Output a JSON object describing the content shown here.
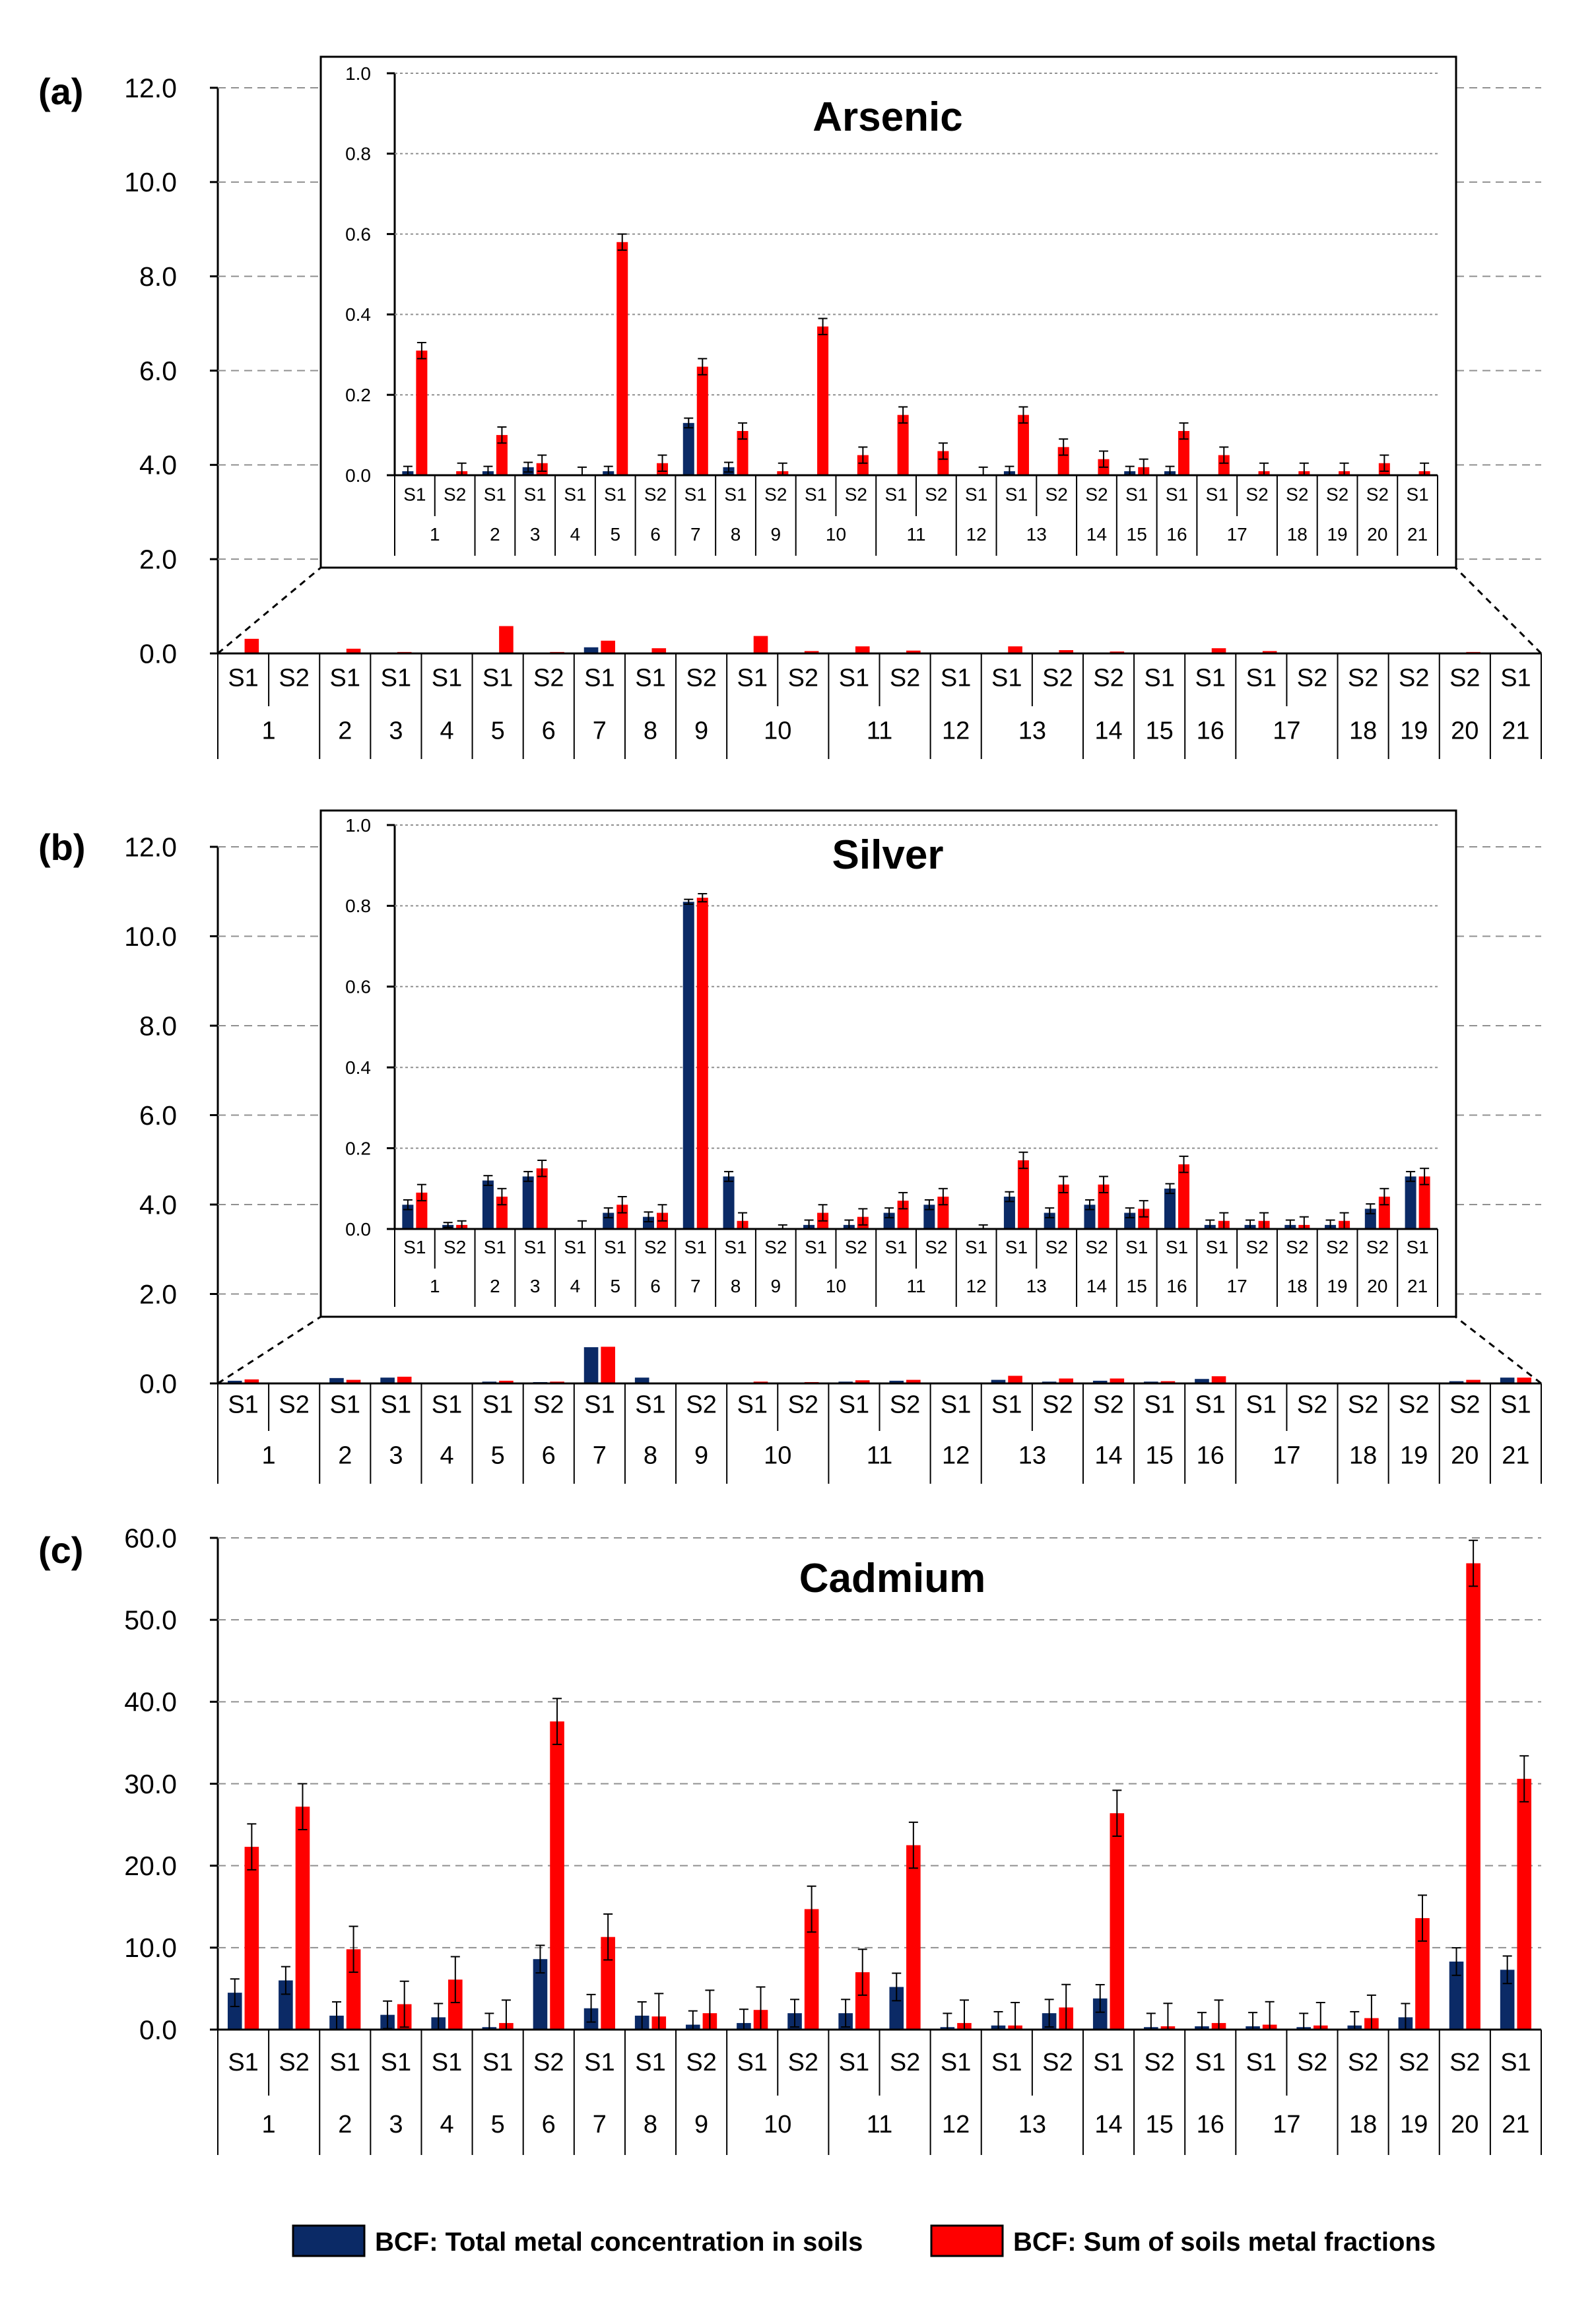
{
  "colors": {
    "total": "#0B2A66",
    "fractions": "#FF0000",
    "grid": "#909090",
    "axis": "#000000"
  },
  "legend": {
    "total": "BCF: Total metal concentration in soils",
    "fractions": "BCF: Sum of soils metal fractions"
  },
  "chart_data": [
    {
      "type": "bar",
      "panel": "(a)",
      "title": "Arsenic",
      "ylim": [
        0,
        12
      ],
      "yticks": [
        "0.0",
        "2.0",
        "4.0",
        "6.0",
        "8.0",
        "10.0",
        "12.0"
      ],
      "inset": {
        "ylim": [
          0,
          1
        ],
        "yticks": [
          "0.0",
          "0.2",
          "0.4",
          "0.6",
          "0.8",
          "1.0"
        ],
        "categories": [
          "S1",
          "S2",
          "S1",
          "S1",
          "S1",
          "S1",
          "S2",
          "S1",
          "S1",
          "S2",
          "S1",
          "S2",
          "S1",
          "S2",
          "S1",
          "S1",
          "S2",
          "S2",
          "S1",
          "S1",
          "S1",
          "S2",
          "S2",
          "S2",
          "S2",
          "S1"
        ],
        "groups": [
          "1",
          "2",
          "3",
          "4",
          "5",
          "6",
          "7",
          "8",
          "9",
          "10",
          "11",
          "12",
          "13",
          "14",
          "15",
          "16",
          "17",
          "18",
          "19",
          "20",
          "21"
        ],
        "group_span": [
          2,
          1,
          1,
          1,
          1,
          1,
          1,
          1,
          1,
          2,
          2,
          1,
          2,
          1,
          1,
          1,
          2,
          1,
          1,
          1,
          1
        ],
        "series": [
          {
            "name": "BCF: Total metal concentration in soils",
            "values": [
              0.01,
              0,
              0.01,
              0.02,
              0,
              0.01,
              0,
              0.13,
              0.02,
              0,
              0,
              0,
              0,
              0,
              0,
              0.01,
              0,
              0,
              0.01,
              0.01,
              0,
              0,
              0,
              0,
              0,
              0
            ]
          },
          {
            "name": "BCF: Sum of soils metal fractions",
            "values": [
              0.31,
              0.01,
              0.1,
              0.03,
              0,
              0.58,
              0.03,
              0.27,
              0.11,
              0.01,
              0.37,
              0.05,
              0.15,
              0.06,
              0,
              0.15,
              0.07,
              0.04,
              0.02,
              0.11,
              0.05,
              0.01,
              0.01,
              0.01,
              0.03,
              0.01
            ]
          },
          {
            "name": "error",
            "values": [
              0.02,
              0.02,
              0.02,
              0.02,
              0.02,
              0.02,
              0.02,
              0.02,
              0.02,
              0.02,
              0.02,
              0.02,
              0.02,
              0.02,
              0.02,
              0.02,
              0.02,
              0.02,
              0.02,
              0.02,
              0.02,
              0.02,
              0.02,
              0.02,
              0.02,
              0.02
            ]
          }
        ]
      },
      "categories": [
        "S1",
        "S2",
        "S1",
        "S1",
        "S1",
        "S1",
        "S2",
        "S1",
        "S1",
        "S2",
        "S1",
        "S2",
        "S1",
        "S2",
        "S1",
        "S1",
        "S2",
        "S2",
        "S1",
        "S1",
        "S1",
        "S2",
        "S2",
        "S2",
        "S2",
        "S1"
      ],
      "groups": [
        "1",
        "2",
        "3",
        "4",
        "5",
        "6",
        "7",
        "8",
        "9",
        "10",
        "11",
        "12",
        "13",
        "14",
        "15",
        "16",
        "17",
        "18",
        "19",
        "20",
        "21"
      ],
      "group_span": [
        2,
        1,
        1,
        1,
        1,
        1,
        1,
        1,
        1,
        2,
        2,
        1,
        2,
        1,
        1,
        1,
        2,
        1,
        1,
        1,
        1
      ],
      "series": [
        {
          "name": "BCF: Total metal concentration in soils",
          "values": [
            0.01,
            0,
            0.01,
            0.02,
            0,
            0.01,
            0,
            0.13,
            0.02,
            0,
            0,
            0,
            0,
            0,
            0,
            0.01,
            0,
            0,
            0.01,
            0.01,
            0,
            0,
            0,
            0,
            0,
            0
          ]
        },
        {
          "name": "BCF: Sum of soils metal fractions",
          "values": [
            0.31,
            0.01,
            0.1,
            0.03,
            0,
            0.58,
            0.03,
            0.27,
            0.11,
            0.01,
            0.37,
            0.05,
            0.15,
            0.06,
            0,
            0.15,
            0.07,
            0.04,
            0.02,
            0.11,
            0.05,
            0.01,
            0.01,
            0.01,
            0.03,
            0.01
          ]
        }
      ]
    },
    {
      "type": "bar",
      "panel": "(b)",
      "title": "Silver",
      "ylim": [
        0,
        12
      ],
      "yticks": [
        "0.0",
        "2.0",
        "4.0",
        "6.0",
        "8.0",
        "10.0",
        "12.0"
      ],
      "inset": {
        "ylim": [
          0,
          1
        ],
        "yticks": [
          "0.0",
          "0.2",
          "0.4",
          "0.6",
          "0.8",
          "1.0"
        ],
        "categories": [
          "S1",
          "S2",
          "S1",
          "S1",
          "S1",
          "S1",
          "S2",
          "S1",
          "S1",
          "S2",
          "S1",
          "S2",
          "S1",
          "S2",
          "S1",
          "S1",
          "S2",
          "S2",
          "S1",
          "S1",
          "S1",
          "S2",
          "S2",
          "S2",
          "S2",
          "S1"
        ],
        "groups": [
          "1",
          "2",
          "3",
          "4",
          "5",
          "6",
          "7",
          "8",
          "9",
          "10",
          "11",
          "12",
          "13",
          "14",
          "15",
          "16",
          "17",
          "18",
          "19",
          "20",
          "21"
        ],
        "group_span": [
          2,
          1,
          1,
          1,
          1,
          1,
          1,
          1,
          1,
          2,
          2,
          1,
          2,
          1,
          1,
          1,
          2,
          1,
          1,
          1,
          1
        ],
        "series": [
          {
            "name": "BCF: Total metal concentration in soils",
            "values": [
              0.06,
              0.01,
              0.12,
              0.13,
              0,
              0.04,
              0.03,
              0.81,
              0.13,
              0,
              0.01,
              0.01,
              0.04,
              0.06,
              0,
              0.08,
              0.04,
              0.06,
              0.04,
              0.1,
              0.01,
              0.01,
              0.01,
              0.01,
              0.05,
              0.13
            ]
          },
          {
            "name": "BCF: Sum of soils metal fractions",
            "values": [
              0.09,
              0.01,
              0.08,
              0.15,
              0,
              0.06,
              0.04,
              0.82,
              0.02,
              0,
              0.04,
              0.03,
              0.07,
              0.08,
              0,
              0.17,
              0.11,
              0.11,
              0.05,
              0.16,
              0.02,
              0.02,
              0.01,
              0.02,
              0.08,
              0.13
            ]
          },
          {
            "name": "error",
            "values": [
              0.02,
              0.01,
              0.02,
              0.02,
              0.02,
              0.02,
              0.02,
              0.01,
              0.02,
              0.01,
              0.02,
              0.02,
              0.02,
              0.02,
              0.01,
              0.02,
              0.02,
              0.02,
              0.02,
              0.02,
              0.02,
              0.02,
              0.02,
              0.02,
              0.02,
              0.02
            ]
          }
        ]
      },
      "categories": [
        "S1",
        "S2",
        "S1",
        "S1",
        "S1",
        "S1",
        "S2",
        "S1",
        "S1",
        "S2",
        "S1",
        "S2",
        "S1",
        "S2",
        "S1",
        "S1",
        "S2",
        "S2",
        "S1",
        "S1",
        "S1",
        "S2",
        "S2",
        "S2",
        "S2",
        "S1"
      ],
      "groups": [
        "1",
        "2",
        "3",
        "4",
        "5",
        "6",
        "7",
        "8",
        "9",
        "10",
        "11",
        "12",
        "13",
        "14",
        "15",
        "16",
        "17",
        "18",
        "19",
        "20",
        "21"
      ],
      "group_span": [
        2,
        1,
        1,
        1,
        1,
        1,
        1,
        1,
        1,
        2,
        2,
        1,
        2,
        1,
        1,
        1,
        2,
        1,
        1,
        1,
        1
      ],
      "series": [
        {
          "name": "BCF: Total metal concentration in soils",
          "values": [
            0.06,
            0.01,
            0.12,
            0.13,
            0,
            0.04,
            0.03,
            0.81,
            0.13,
            0,
            0.01,
            0.01,
            0.04,
            0.06,
            0,
            0.08,
            0.04,
            0.06,
            0.04,
            0.1,
            0.01,
            0.01,
            0.01,
            0.01,
            0.05,
            0.13
          ]
        },
        {
          "name": "BCF: Sum of soils metal fractions",
          "values": [
            0.09,
            0.01,
            0.08,
            0.15,
            0,
            0.06,
            0.04,
            0.82,
            0.02,
            0,
            0.04,
            0.03,
            0.07,
            0.08,
            0,
            0.17,
            0.11,
            0.11,
            0.05,
            0.16,
            0.02,
            0.02,
            0.01,
            0.02,
            0.08,
            0.13
          ]
        }
      ]
    },
    {
      "type": "bar",
      "panel": "(c)",
      "title": "Cadmium",
      "ylim": [
        0,
        60
      ],
      "yticks": [
        "0.0",
        "10.0",
        "20.0",
        "30.0",
        "40.0",
        "50.0",
        "60.0"
      ],
      "categories": [
        "S1",
        "S2",
        "S1",
        "S1",
        "S1",
        "S1",
        "S2",
        "S1",
        "S1",
        "S2",
        "S1",
        "S2",
        "S1",
        "S2",
        "S1",
        "S1",
        "S2",
        "S1",
        "S2",
        "S1",
        "S1",
        "S2",
        "S2",
        "S2",
        "S2",
        "S1"
      ],
      "groups": [
        "1",
        "2",
        "3",
        "4",
        "5",
        "6",
        "7",
        "8",
        "9",
        "10",
        "11",
        "12",
        "13",
        "14",
        "15",
        "16",
        "17",
        "18",
        "19",
        "20",
        "21"
      ],
      "group_span": [
        2,
        1,
        1,
        1,
        1,
        1,
        1,
        1,
        1,
        2,
        2,
        1,
        2,
        1,
        1,
        1,
        2,
        1,
        1,
        1,
        1
      ],
      "series": [
        {
          "name": "BCF: Total metal concentration in soils",
          "values": [
            4.5,
            6,
            1.7,
            1.8,
            1.5,
            0.3,
            8.6,
            2.6,
            1.7,
            0.6,
            0.8,
            2,
            2,
            5.2,
            0.3,
            0.5,
            2,
            3.8,
            0.3,
            0.4,
            0.4,
            0.3,
            0.5,
            1.5,
            8.3,
            7.3
          ]
        },
        {
          "name": "BCF: Sum of soils metal fractions",
          "values": [
            22.3,
            27.2,
            9.8,
            3.1,
            6.1,
            0.8,
            37.6,
            11.3,
            1.6,
            2,
            2.4,
            14.7,
            7,
            22.5,
            0.8,
            0.5,
            2.7,
            26.4,
            0.4,
            0.8,
            0.6,
            0.5,
            1.4,
            13.6,
            56.9,
            30.6
          ]
        },
        {
          "name": "error",
          "values": [
            2.8,
            2.8,
            2.8,
            2.8,
            2.8,
            2.8,
            2.8,
            2.8,
            2.8,
            2.8,
            2.8,
            2.8,
            2.8,
            2.8,
            2.8,
            2.8,
            2.8,
            2.8,
            2.8,
            2.8,
            2.8,
            2.8,
            2.8,
            2.8,
            2.8,
            2.8
          ]
        }
      ]
    }
  ]
}
